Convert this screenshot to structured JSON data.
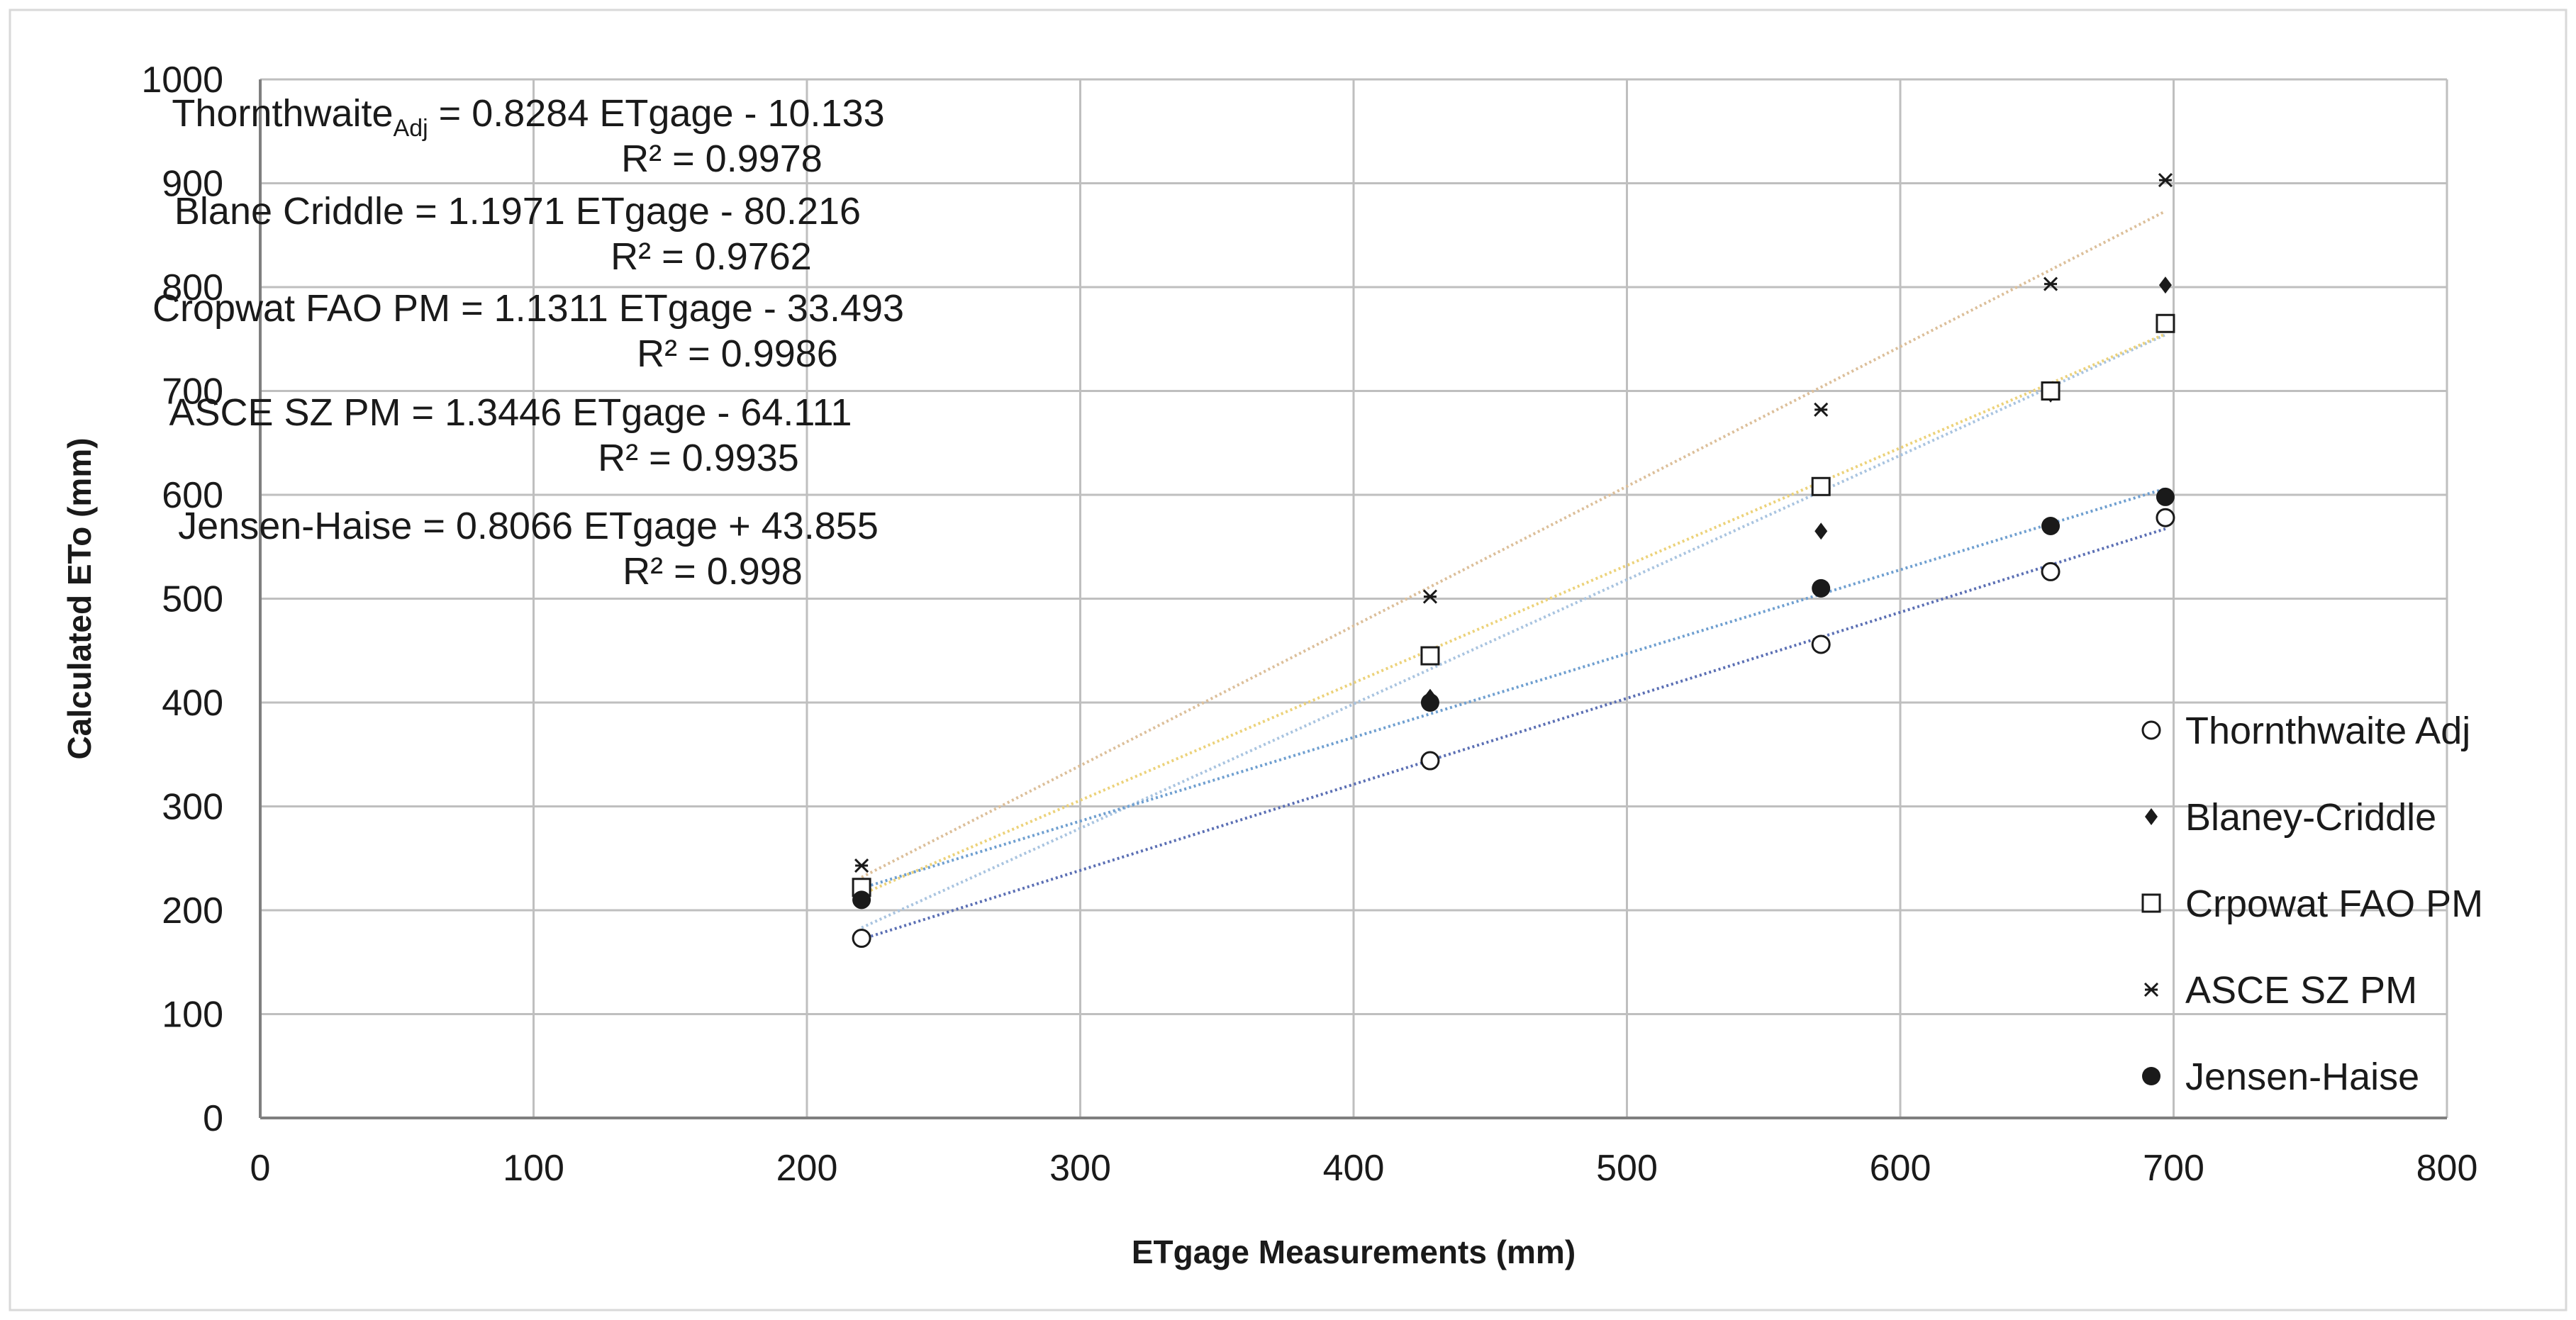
{
  "chart_data": {
    "type": "scatter",
    "title": "",
    "xlabel": "ETgage Measurements (mm)",
    "ylabel": "Calculated ETo (mm)",
    "xlim": [
      0,
      800
    ],
    "ylim": [
      0,
      1000
    ],
    "x_ticks": [
      0,
      100,
      200,
      300,
      400,
      500,
      600,
      700,
      800
    ],
    "y_ticks": [
      0,
      100,
      200,
      300,
      400,
      500,
      600,
      700,
      800,
      900,
      1000
    ],
    "grid": true,
    "legend_position": "right",
    "x": [
      220,
      428,
      571,
      655,
      697
    ],
    "series": [
      {
        "name": "Thornthwaite Adj",
        "marker": "open-circle",
        "y": [
          173,
          344,
          456,
          526,
          578
        ],
        "trendline": {
          "slope": 0.8284,
          "intercept": -10.133,
          "color": "#5b6fb4"
        }
      },
      {
        "name": "Blaney-Criddle",
        "marker": "diamond",
        "y": [
          213,
          405,
          565,
          697,
          802
        ],
        "trendline": {
          "slope": 1.1971,
          "intercept": -80.216,
          "color": "#a9c4e0"
        }
      },
      {
        "name": "Crpowat FAO PM",
        "marker": "open-square",
        "y": [
          222,
          445,
          608,
          700,
          765
        ],
        "trendline": {
          "slope": 1.1311,
          "intercept": -33.493,
          "color": "#ecd27a"
        }
      },
      {
        "name": "ASCE SZ PM",
        "marker": "star",
        "y": [
          243,
          502,
          682,
          803,
          903
        ],
        "trendline": {
          "slope": 1.3446,
          "intercept": -64.111,
          "color": "#dcbf9a"
        }
      },
      {
        "name": "Jensen-Haise",
        "marker": "filled-circle",
        "y": [
          210,
          400,
          510,
          570,
          598
        ],
        "trendline": {
          "slope": 0.8066,
          "intercept": 43.855,
          "color": "#6f9fd0"
        }
      }
    ],
    "annotations": [
      {
        "main": "Thornthwaite",
        "sub": "Adj",
        "rest": " = 0.8284 ETgage - 10.133",
        "r2": "R² = 0.9978"
      },
      {
        "main": "Blane Criddle = 1.1971 ETgage - 80.216",
        "sub": "",
        "rest": "",
        "r2": "R² = 0.9762"
      },
      {
        "main": "Cropwat FAO PM = 1.1311 ETgage - 33.493",
        "sub": "",
        "rest": "",
        "r2": "R² = 0.9986"
      },
      {
        "main": "ASCE SZ PM = 1.3446 ETgage - 64.111",
        "sub": "",
        "rest": "",
        "r2": "R² = 0.9935"
      },
      {
        "main": "Jensen-Haise = 0.8066 ETgage + 43.855",
        "sub": "",
        "rest": "",
        "r2": "R² = 0.998"
      }
    ],
    "colors": {
      "grid": "#bfbfbf",
      "axis": "#7f7f7f",
      "marker": "#1a1a1a",
      "frame": "#d9d9d9"
    }
  }
}
